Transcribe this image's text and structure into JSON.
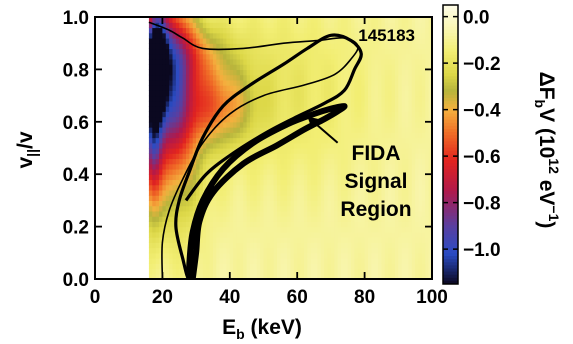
{
  "chart_data": {
    "type": "heatmap",
    "title": "",
    "xlabel": "E",
    "xlabel_sub": "b",
    "xlabel_unit": " (keV)",
    "ylabel": "v",
    "ylabel_sub": "||",
    "ylabel_tail": "/v",
    "xlim": [
      0,
      100
    ],
    "ylim": [
      0,
      1.0
    ],
    "x_ticks": [
      0,
      20,
      40,
      60,
      80,
      100
    ],
    "y_ticks": [
      0.0,
      0.2,
      0.4,
      0.6,
      0.8,
      1.0
    ],
    "x_tick_labels": [
      "0",
      "20",
      "40",
      "60",
      "80",
      "100"
    ],
    "y_tick_labels": [
      "0.0",
      "0.2",
      "0.4",
      "0.6",
      "0.8",
      "1.0"
    ],
    "shot_number": "145183",
    "annotation": {
      "lines": [
        "FIDA",
        "Signal",
        "Region"
      ],
      "arrow_from": [
        72,
        0.52
      ],
      "arrow_to": [
        63,
        0.62
      ]
    },
    "data_cutoff_energy": 16,
    "colorbar": {
      "range": [
        -1.15,
        0.05
      ],
      "ticks": [
        0.0,
        -0.2,
        -0.4,
        -0.6,
        -0.8,
        -1.0
      ],
      "tick_labels": [
        "0.0",
        "−0.2",
        "−0.4",
        "−0.6",
        "−0.8",
        "−1.0"
      ],
      "label_parts": [
        "ΔF",
        "b",
        "V (10",
        "12",
        " eV",
        "−1",
        ")"
      ]
    },
    "contour_thin": [
      [
        16,
        0.98
      ],
      [
        22,
        0.95
      ],
      [
        26,
        0.92
      ],
      [
        32,
        0.88
      ],
      [
        44,
        0.88
      ],
      [
        56,
        0.9
      ],
      [
        66,
        0.91
      ],
      [
        74,
        0.92
      ],
      [
        78,
        0.89
      ],
      [
        76,
        0.84
      ],
      [
        71,
        0.78
      ],
      [
        62,
        0.74
      ],
      [
        50,
        0.7
      ],
      [
        40,
        0.63
      ],
      [
        32,
        0.52
      ],
      [
        26,
        0.38
      ],
      [
        22,
        0.26
      ],
      [
        20,
        0.14
      ],
      [
        20,
        0.0
      ]
    ],
    "contour_signal_outer": [
      [
        27,
        0.3
      ],
      [
        33,
        0.4
      ],
      [
        41,
        0.48
      ],
      [
        51,
        0.56
      ],
      [
        60,
        0.62
      ],
      [
        68,
        0.67
      ],
      [
        74,
        0.72
      ],
      [
        77,
        0.8
      ],
      [
        79,
        0.86
      ],
      [
        76,
        0.91
      ],
      [
        70,
        0.93
      ],
      [
        63,
        0.88
      ],
      [
        56,
        0.82
      ],
      [
        46,
        0.74
      ],
      [
        38,
        0.66
      ],
      [
        32,
        0.54
      ],
      [
        28,
        0.41
      ],
      [
        25,
        0.3
      ],
      [
        24,
        0.2
      ],
      [
        26,
        0.08
      ],
      [
        28,
        0.0
      ]
    ],
    "contour_signal_inner": [
      [
        29,
        0.0
      ],
      [
        30,
        0.1
      ],
      [
        31,
        0.22
      ],
      [
        35,
        0.33
      ],
      [
        44,
        0.44
      ],
      [
        54,
        0.51
      ],
      [
        62,
        0.57
      ],
      [
        68,
        0.61
      ],
      [
        72,
        0.64
      ],
      [
        74,
        0.66
      ],
      [
        70,
        0.65
      ],
      [
        65,
        0.63
      ],
      [
        57,
        0.59
      ],
      [
        47,
        0.52
      ],
      [
        38,
        0.42
      ],
      [
        32,
        0.3
      ],
      [
        29,
        0.18
      ],
      [
        28,
        0.06
      ],
      [
        28,
        0.0
      ]
    ],
    "field_components": [
      {
        "e0": 18,
        "v0": 0.82,
        "se": 2.2,
        "sv": 0.13,
        "amp": -1.05
      },
      {
        "e0": 17,
        "v0": 0.55,
        "se": 2.0,
        "sv": 0.2,
        "amp": -0.55
      },
      {
        "e0": 22,
        "v0": 0.78,
        "se": 4.5,
        "sv": 0.22,
        "amp": -0.55
      },
      {
        "e0": 24,
        "v0": 0.58,
        "se": 6.0,
        "sv": 0.28,
        "amp": -0.3
      },
      {
        "e0": 36,
        "v0": 0.66,
        "se": 7.0,
        "sv": 0.1,
        "amp": -0.3
      },
      {
        "e0": 29,
        "v0": 0.86,
        "se": 8.0,
        "sv": 0.08,
        "amp": -0.2
      },
      {
        "e0": 50,
        "v0": 0.72,
        "se": 22.0,
        "sv": 0.25,
        "amp": -0.12
      }
    ],
    "field_background": -0.08,
    "colormap": [
      [
        -1.15,
        "#0b0820"
      ],
      [
        -1.02,
        "#2a4cc4"
      ],
      [
        -0.9,
        "#5a3fa0"
      ],
      [
        -0.75,
        "#b0194b"
      ],
      [
        -0.62,
        "#e2231f"
      ],
      [
        -0.5,
        "#f06e27"
      ],
      [
        -0.4,
        "#f4b23f"
      ],
      [
        -0.32,
        "#b6b43c"
      ],
      [
        -0.25,
        "#dcd747"
      ],
      [
        -0.15,
        "#f2ee73"
      ],
      [
        -0.05,
        "#f9f6b4"
      ],
      [
        0.05,
        "#fefce8"
      ]
    ]
  }
}
